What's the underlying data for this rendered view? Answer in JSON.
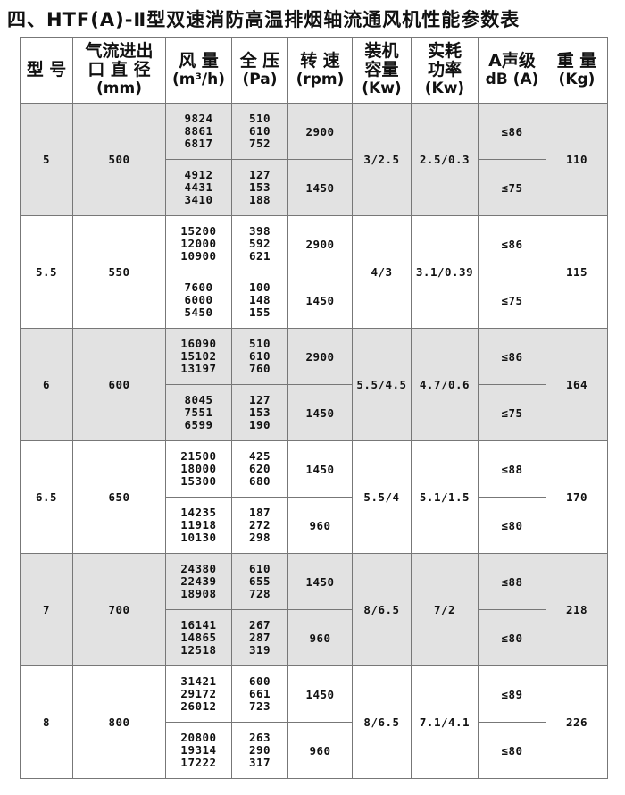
{
  "title": "四、HTF(A)-Ⅱ型双速消防高温排烟轴流通风机性能参数表",
  "headers": [
    {
      "label": "型 号",
      "unit": ""
    },
    {
      "label": "气流进出\n口 直 径",
      "unit": "(mm)"
    },
    {
      "label": "风 量",
      "unit": "(m³/h)"
    },
    {
      "label": "全 压",
      "unit": "(Pa)"
    },
    {
      "label": "转 速",
      "unit": "(rpm)"
    },
    {
      "label": "装机\n容量",
      "unit": "(Kw)"
    },
    {
      "label": "实耗\n功率",
      "unit": "(Kw)"
    },
    {
      "label": "A声级",
      "unit": "dB (A)"
    },
    {
      "label": "重 量",
      "unit": "(Kg)"
    }
  ],
  "rows": [
    {
      "model": "5",
      "diameter": "500",
      "capacity": "3/2.5",
      "power": "2.5/0.3",
      "weight": "110",
      "speeds": [
        {
          "airflow": "9824\n8861\n6817",
          "pressure": "510\n610\n752",
          "rpm": "2900",
          "noise": "≤86"
        },
        {
          "airflow": "4912\n4431\n3410",
          "pressure": "127\n153\n188",
          "rpm": "1450",
          "noise": "≤75"
        }
      ]
    },
    {
      "model": "5.5",
      "diameter": "550",
      "capacity": "4/3",
      "power": "3.1/0.39",
      "weight": "115",
      "speeds": [
        {
          "airflow": "15200\n12000\n10900",
          "pressure": "398\n592\n621",
          "rpm": "2900",
          "noise": "≤86"
        },
        {
          "airflow": "7600\n6000\n5450",
          "pressure": "100\n148\n155",
          "rpm": "1450",
          "noise": "≤75"
        }
      ]
    },
    {
      "model": "6",
      "diameter": "600",
      "capacity": "5.5/4.5",
      "power": "4.7/0.6",
      "weight": "164",
      "speeds": [
        {
          "airflow": "16090\n15102\n13197",
          "pressure": "510\n610\n760",
          "rpm": "2900",
          "noise": "≤86"
        },
        {
          "airflow": "8045\n7551\n6599",
          "pressure": "127\n153\n190",
          "rpm": "1450",
          "noise": "≤75"
        }
      ]
    },
    {
      "model": "6.5",
      "diameter": "650",
      "capacity": "5.5/4",
      "power": "5.1/1.5",
      "weight": "170",
      "speeds": [
        {
          "airflow": "21500\n18000\n15300",
          "pressure": "425\n620\n680",
          "rpm": "1450",
          "noise": "≤88"
        },
        {
          "airflow": "14235\n11918\n10130",
          "pressure": "187\n272\n298",
          "rpm": "960",
          "noise": "≤80"
        }
      ]
    },
    {
      "model": "7",
      "diameter": "700",
      "capacity": "8/6.5",
      "power": "7/2",
      "weight": "218",
      "speeds": [
        {
          "airflow": "24380\n22439\n18908",
          "pressure": "610\n655\n728",
          "rpm": "1450",
          "noise": "≤88"
        },
        {
          "airflow": "16141\n14865\n12518",
          "pressure": "267\n287\n319",
          "rpm": "960",
          "noise": "≤80"
        }
      ]
    },
    {
      "model": "8",
      "diameter": "800",
      "capacity": "8/6.5",
      "power": "7.1/4.1",
      "weight": "226",
      "speeds": [
        {
          "airflow": "31421\n29172\n26012",
          "pressure": "600\n661\n723",
          "rpm": "1450",
          "noise": "≤89"
        },
        {
          "airflow": "20800\n19314\n17222",
          "pressure": "263\n290\n317",
          "rpm": "960",
          "noise": "≤80"
        }
      ]
    }
  ],
  "colors": {
    "shaded_row": "#e2e2e2",
    "border": "#777777"
  }
}
